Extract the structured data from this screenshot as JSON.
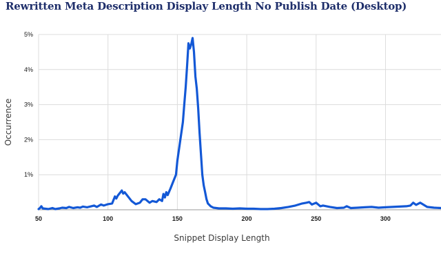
{
  "chart_data": {
    "type": "line",
    "title": "Rewritten Meta Description Display Length No Publish Date (Desktop)",
    "xlabel": "Snippet Display Length",
    "ylabel": "Occurrence",
    "xlim": [
      50,
      340
    ],
    "ylim": [
      0,
      5
    ],
    "x_ticks": [
      50,
      100,
      150,
      200,
      250,
      300
    ],
    "x_tick_labels": [
      "50",
      "100",
      "150",
      "200",
      "250",
      "300"
    ],
    "y_ticks": [
      1,
      2,
      3,
      4,
      5
    ],
    "y_tick_labels": [
      "1%",
      "2%",
      "3%",
      "4%",
      "5%"
    ],
    "grid": true,
    "line_color": "#1358d6",
    "series": [
      {
        "x": [
          50,
          51,
          52,
          53,
          55,
          57,
          60,
          62,
          65,
          67,
          70,
          72,
          75,
          78,
          80,
          82,
          85,
          88,
          90,
          92,
          95,
          97,
          100,
          103,
          105,
          106,
          107,
          108,
          109,
          110,
          111,
          112,
          113,
          115,
          117,
          120,
          123,
          125,
          127,
          130,
          132,
          135,
          137,
          139,
          140,
          141,
          142,
          143,
          145,
          147,
          149,
          150,
          152,
          154,
          155,
          156,
          157,
          158,
          159,
          160,
          161,
          162,
          163,
          164,
          165,
          166,
          167,
          168,
          169,
          170,
          171,
          172,
          174,
          176,
          178,
          180,
          185,
          190,
          195,
          200,
          205,
          210,
          215,
          220,
          225,
          230,
          235,
          240,
          243,
          245,
          247,
          250,
          253,
          255,
          260,
          265,
          270,
          272,
          275,
          280,
          285,
          290,
          295,
          300,
          305,
          310,
          315,
          318,
          320,
          322,
          325,
          330,
          335,
          340
        ],
        "y": [
          0.02,
          0.05,
          0.1,
          0.04,
          0.03,
          0.02,
          0.05,
          0.02,
          0.04,
          0.06,
          0.05,
          0.08,
          0.05,
          0.07,
          0.06,
          0.09,
          0.07,
          0.1,
          0.12,
          0.08,
          0.15,
          0.12,
          0.16,
          0.18,
          0.38,
          0.32,
          0.4,
          0.45,
          0.5,
          0.55,
          0.46,
          0.5,
          0.45,
          0.35,
          0.25,
          0.16,
          0.2,
          0.3,
          0.3,
          0.2,
          0.25,
          0.22,
          0.3,
          0.25,
          0.45,
          0.35,
          0.5,
          0.42,
          0.6,
          0.8,
          1.0,
          1.4,
          1.95,
          2.5,
          3.0,
          3.5,
          4.1,
          4.75,
          4.6,
          4.72,
          4.9,
          4.5,
          3.8,
          3.45,
          2.9,
          2.2,
          1.6,
          1.0,
          0.7,
          0.5,
          0.3,
          0.18,
          0.1,
          0.06,
          0.05,
          0.04,
          0.04,
          0.03,
          0.04,
          0.03,
          0.03,
          0.02,
          0.02,
          0.03,
          0.05,
          0.08,
          0.12,
          0.18,
          0.2,
          0.22,
          0.15,
          0.2,
          0.1,
          0.12,
          0.08,
          0.05,
          0.06,
          0.1,
          0.05,
          0.06,
          0.07,
          0.08,
          0.06,
          0.07,
          0.08,
          0.09,
          0.1,
          0.12,
          0.2,
          0.14,
          0.2,
          0.08,
          0.06,
          0.05
        ]
      }
    ]
  }
}
